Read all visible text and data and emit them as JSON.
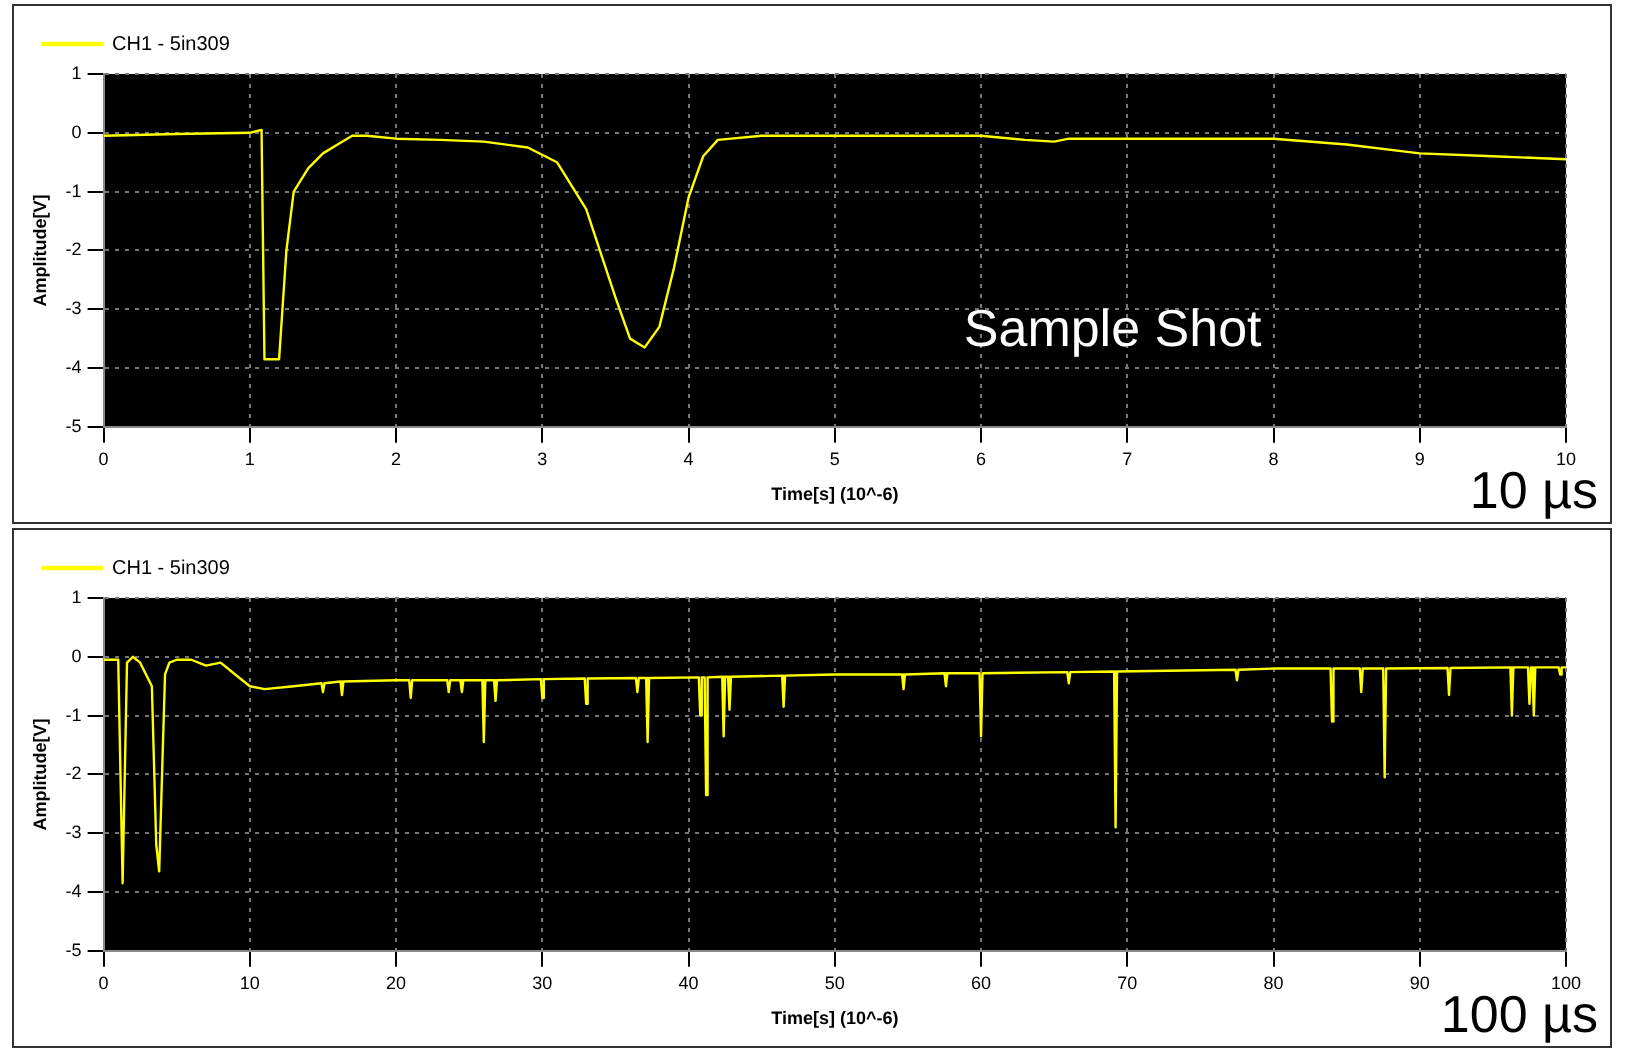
{
  "chart_data": [
    {
      "type": "line",
      "xlabel": "Time[s] (10^-6)",
      "ylabel": "Amplitude[V]",
      "annotations": [
        "Sample Shot",
        "10 µs"
      ],
      "legend": "top left",
      "grid": true,
      "xlim": [
        0,
        10
      ],
      "xticks": [
        0,
        1,
        2,
        3,
        4,
        5,
        6,
        7,
        8,
        9,
        10
      ],
      "ylim": [
        -5,
        1
      ],
      "yticks": [
        -5,
        -4,
        -3,
        -2,
        -1,
        0,
        1
      ],
      "series": [
        {
          "name": "CH1 - 5in309",
          "color": "#ffff00",
          "x": [
            0,
            0.5,
            1.0,
            1.08,
            1.1,
            1.2,
            1.25,
            1.3,
            1.4,
            1.5,
            1.6,
            1.7,
            1.8,
            2.0,
            2.3,
            2.6,
            2.9,
            3.1,
            3.3,
            3.5,
            3.6,
            3.7,
            3.8,
            3.9,
            4.0,
            4.1,
            4.2,
            4.5,
            5,
            6,
            6.3,
            6.5,
            6.6,
            7,
            8,
            8.5,
            9,
            9.5,
            10
          ],
          "values": [
            -0.05,
            -0.02,
            0.0,
            0.05,
            -3.85,
            -3.85,
            -2.0,
            -1.0,
            -0.6,
            -0.35,
            -0.2,
            -0.05,
            -0.05,
            -0.1,
            -0.12,
            -0.15,
            -0.25,
            -0.5,
            -1.3,
            -2.8,
            -3.5,
            -3.65,
            -3.3,
            -2.3,
            -1.1,
            -0.4,
            -0.12,
            -0.05,
            -0.05,
            -0.05,
            -0.12,
            -0.15,
            -0.1,
            -0.1,
            -0.1,
            -0.2,
            -0.35,
            -0.4,
            -0.45
          ]
        }
      ]
    },
    {
      "type": "line",
      "xlabel": "Time[s] (10^-6)",
      "ylabel": "Amplitude[V]",
      "annotations": [
        "100 µs"
      ],
      "legend": "top left",
      "grid": true,
      "xlim": [
        0,
        100
      ],
      "xticks": [
        0,
        10,
        20,
        30,
        40,
        50,
        60,
        70,
        80,
        90,
        100
      ],
      "ylim": [
        -5,
        1
      ],
      "yticks": [
        -5,
        -4,
        -3,
        -2,
        -1,
        0,
        1
      ],
      "series": [
        {
          "name": "CH1 - 5in309",
          "color": "#ffff00",
          "x": [
            0,
            1,
            1.3,
            1.6,
            2.0,
            2.5,
            3.3,
            3.6,
            3.8,
            4.2,
            4.5,
            5,
            6,
            7,
            8,
            9,
            10,
            11,
            13,
            14.9,
            15,
            15.1,
            16.2,
            16.3,
            16.4,
            20,
            20.9,
            21,
            21.1,
            23.5,
            23.6,
            23.7,
            24.4,
            24.5,
            24.6,
            25.9,
            26,
            26.1,
            26.7,
            26.8,
            26.9,
            29.9,
            30,
            30.1,
            32.9,
            33,
            33.1,
            36.4,
            36.5,
            36.6,
            37.1,
            37.2,
            37.3,
            40.7,
            40.8,
            40.9,
            41.1,
            41.2,
            41.3,
            42.3,
            42.4,
            42.5,
            42.7,
            42.8,
            42.9,
            46.4,
            46.5,
            46.6,
            50,
            54.6,
            54.7,
            54.8,
            57.5,
            57.6,
            57.7,
            59.9,
            60,
            60.1,
            65.9,
            66,
            66.1,
            69.1,
            69.2,
            69.3,
            77.4,
            77.5,
            77.6,
            80,
            83.9,
            84,
            84.1,
            85.9,
            86,
            86.1,
            87.5,
            87.6,
            87.7,
            91.9,
            92,
            92.1,
            96.2,
            96.3,
            96.4,
            97.4,
            97.5,
            97.6,
            97.7,
            97.8,
            97.9,
            99.5,
            99.6,
            99.7,
            100
          ],
          "values": [
            -0.05,
            -0.05,
            -3.85,
            -0.1,
            0.0,
            -0.1,
            -0.5,
            -3.2,
            -3.65,
            -0.3,
            -0.1,
            -0.05,
            -0.05,
            -0.15,
            -0.1,
            -0.3,
            -0.5,
            -0.55,
            -0.5,
            -0.45,
            -0.6,
            -0.45,
            -0.42,
            -0.65,
            -0.42,
            -0.4,
            -0.4,
            -0.7,
            -0.4,
            -0.4,
            -0.6,
            -0.4,
            -0.4,
            -0.6,
            -0.4,
            -0.4,
            -1.45,
            -0.4,
            -0.4,
            -0.75,
            -0.4,
            -0.38,
            -0.7,
            -0.38,
            -0.37,
            -0.8,
            -0.37,
            -0.36,
            -0.6,
            -0.36,
            -0.36,
            -1.45,
            -0.36,
            -0.35,
            -1.0,
            -0.35,
            -0.35,
            -2.35,
            -0.35,
            -0.34,
            -1.35,
            -0.34,
            -0.34,
            -0.9,
            -0.34,
            -0.32,
            -0.85,
            -0.32,
            -0.3,
            -0.3,
            -0.55,
            -0.3,
            -0.28,
            -0.5,
            -0.28,
            -0.28,
            -1.35,
            -0.28,
            -0.26,
            -0.45,
            -0.26,
            -0.25,
            -2.9,
            -0.25,
            -0.22,
            -0.4,
            -0.22,
            -0.2,
            -0.2,
            -1.1,
            -0.2,
            -0.2,
            -0.6,
            -0.2,
            -0.2,
            -2.05,
            -0.2,
            -0.19,
            -0.65,
            -0.19,
            -0.18,
            -1.0,
            -0.18,
            -0.18,
            -0.8,
            -0.18,
            -0.18,
            -1.0,
            -0.18,
            -0.18,
            -0.3,
            -0.18,
            -0.18
          ]
        }
      ]
    }
  ]
}
